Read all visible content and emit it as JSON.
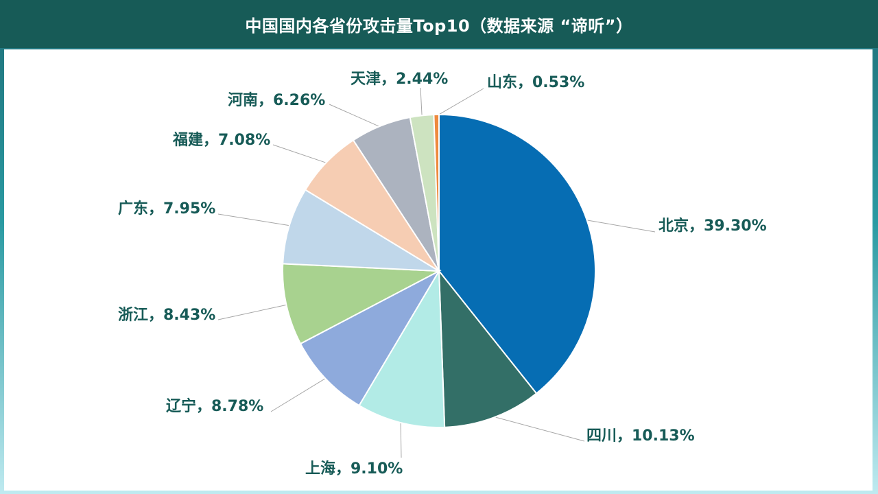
{
  "header": {
    "title": "中国国内各省份攻击量Top10（数据来源 “谛听”）"
  },
  "colors": {
    "title_bar": "#175b57",
    "label_text": "#175b57",
    "leader_line": "#a6a6a6"
  },
  "chart_data": {
    "type": "pie",
    "title": "中国国内各省份攻击量Top10（数据来源 “谛听”）",
    "start_angle_deg": 0,
    "direction": "clockwise",
    "slices": [
      {
        "name": "北京",
        "value": 39.3,
        "label": "北京，39.30%",
        "color": "#066db3"
      },
      {
        "name": "四川",
        "value": 10.13,
        "label": "四川，10.13%",
        "color": "#336f67"
      },
      {
        "name": "上海",
        "value": 9.1,
        "label": "上海，9.10%",
        "color": "#b2ebe6"
      },
      {
        "name": "辽宁",
        "value": 8.78,
        "label": "辽宁，8.78%",
        "color": "#8eaadc"
      },
      {
        "name": "浙江",
        "value": 8.43,
        "label": "浙江，8.43%",
        "color": "#a8d28f"
      },
      {
        "name": "广东",
        "value": 7.95,
        "label": "广东，7.95%",
        "color": "#c0d7ea"
      },
      {
        "name": "福建",
        "value": 7.08,
        "label": "福建，7.08%",
        "color": "#f6cdb3"
      },
      {
        "name": "河南",
        "value": 6.26,
        "label": "河南，6.26%",
        "color": "#acb3bf"
      },
      {
        "name": "天津",
        "value": 2.44,
        "label": "天津，2.44%",
        "color": "#cde3c0"
      },
      {
        "name": "山东",
        "value": 0.53,
        "label": "山东，0.53%",
        "color": "#ee8a3e"
      }
    ]
  }
}
